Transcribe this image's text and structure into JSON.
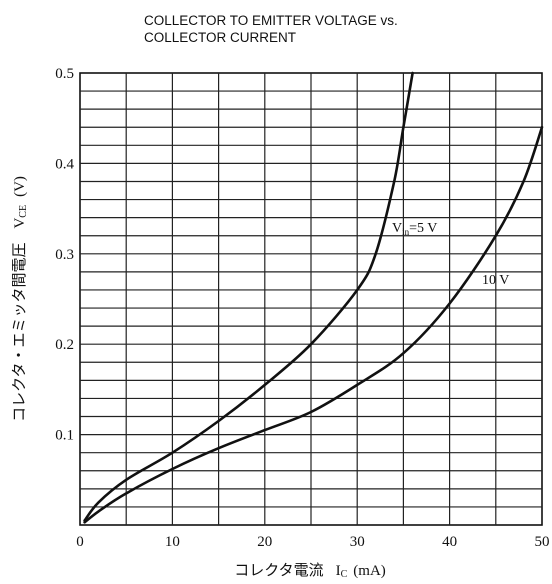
{
  "chart_data": {
    "type": "line",
    "title_lines": [
      "COLLECTOR TO EMITTER VOLTAGE vs.",
      "COLLECTOR CURRENT"
    ],
    "xlabel": {
      "text": "コレクタ電流",
      "symbol": "I",
      "subscript": "C",
      "unit": "(mA)"
    },
    "ylabel": {
      "text": "コレクタ・エミッタ間電圧",
      "symbol": "V",
      "subscript": "CE",
      "unit": "(V)"
    },
    "xlim": [
      0,
      50
    ],
    "ylim": [
      0,
      0.5
    ],
    "x_ticks": [
      {
        "value": 0,
        "label": "0"
      },
      {
        "value": 10,
        "label": "10"
      },
      {
        "value": 20,
        "label": "20"
      },
      {
        "value": 30,
        "label": "30"
      },
      {
        "value": 40,
        "label": "40"
      },
      {
        "value": 50,
        "label": "50"
      }
    ],
    "y_ticks": [
      {
        "value": 0.1,
        "label": "0.1"
      },
      {
        "value": 0.2,
        "label": "0.2"
      },
      {
        "value": 0.3,
        "label": "0.3"
      },
      {
        "value": 0.4,
        "label": "0.4"
      },
      {
        "value": 0.5,
        "label": "0.5"
      }
    ],
    "grid": {
      "x_minor_step": 5,
      "y_minor_step": 0.02
    },
    "series": [
      {
        "name": "Vin=5 V",
        "label": {
          "symbol": "V",
          "subscript": "in",
          "rest": "=5 V"
        },
        "x": [
          0.5,
          2,
          5,
          10,
          15,
          20,
          25,
          30,
          32,
          34,
          35,
          36
        ],
        "y": [
          0.005,
          0.025,
          0.05,
          0.08,
          0.115,
          0.155,
          0.2,
          0.26,
          0.3,
          0.38,
          0.44,
          0.5
        ]
      },
      {
        "name": "10 V",
        "label": {
          "symbol": "",
          "subscript": "",
          "rest": "10 V"
        },
        "x": [
          0.5,
          2,
          5,
          10,
          15,
          20,
          25,
          30,
          35,
          40,
          45,
          48,
          50
        ],
        "y": [
          0.003,
          0.015,
          0.035,
          0.062,
          0.085,
          0.105,
          0.125,
          0.155,
          0.19,
          0.245,
          0.32,
          0.38,
          0.44
        ]
      }
    ]
  }
}
